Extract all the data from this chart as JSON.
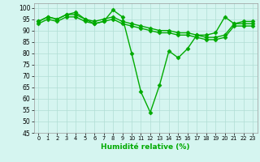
{
  "title": "",
  "xlabel": "Humidité relative (%)",
  "ylabel": "",
  "xlim": [
    -0.5,
    23.5
  ],
  "ylim": [
    45,
    102
  ],
  "yticks": [
    45,
    50,
    55,
    60,
    65,
    70,
    75,
    80,
    85,
    90,
    95,
    100
  ],
  "xtick_labels": [
    "0",
    "1",
    "2",
    "3",
    "4",
    "5",
    "6",
    "7",
    "8",
    "9",
    "10",
    "11",
    "12",
    "13",
    "14",
    "15",
    "16",
    "17",
    "18",
    "19",
    "20",
    "21",
    "22",
    "23"
  ],
  "background_color": "#d5f5f0",
  "grid_color": "#b0ddd4",
  "line_color": "#00aa00",
  "line_width": 1.0,
  "marker": "D",
  "marker_size": 2.5,
  "series": [
    [
      94,
      96,
      95,
      97,
      97,
      95,
      93,
      94,
      99,
      96,
      80,
      63,
      54,
      66,
      81,
      78,
      82,
      88,
      88,
      89,
      96,
      93,
      94,
      94
    ],
    [
      94,
      96,
      95,
      97,
      98,
      95,
      94,
      95,
      96,
      94,
      93,
      92,
      91,
      90,
      90,
      89,
      89,
      88,
      87,
      87,
      88,
      93,
      93,
      93
    ],
    [
      93,
      95,
      94,
      96,
      96,
      94,
      93,
      94,
      95,
      93,
      92,
      91,
      90,
      89,
      89,
      88,
      88,
      87,
      86,
      86,
      87,
      92,
      92,
      92
    ]
  ]
}
